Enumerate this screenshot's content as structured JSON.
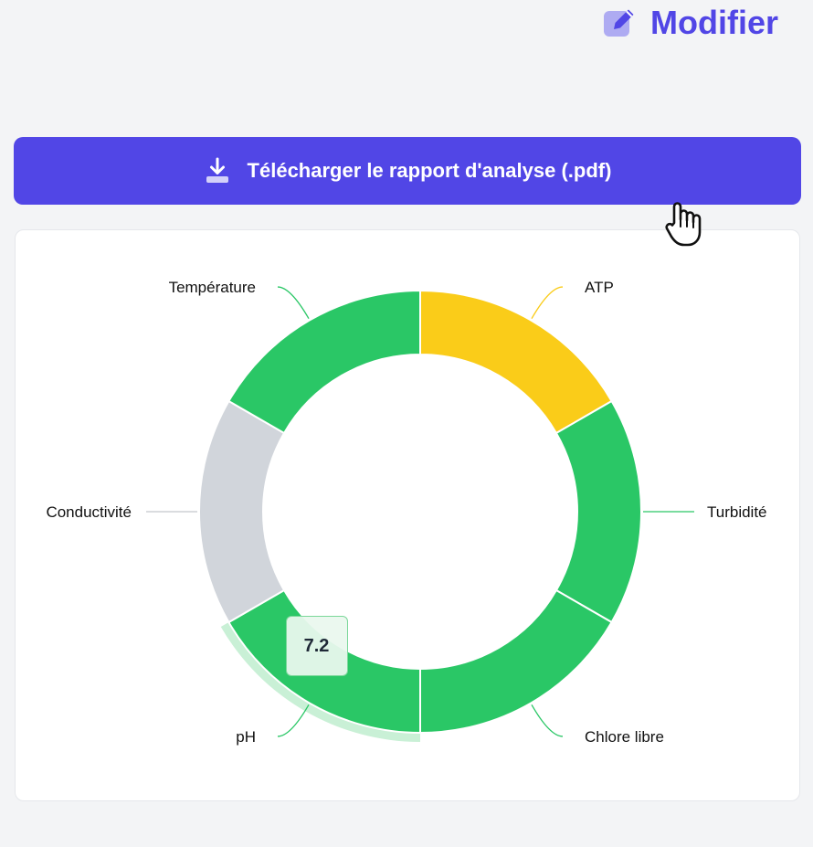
{
  "header": {
    "edit_label": "Modifier",
    "edit_icon": "pencil-square-icon"
  },
  "download": {
    "label": "Télécharger le rapport d'analyse (.pdf)",
    "icon": "download-icon"
  },
  "colors": {
    "accent": "#5146e6",
    "ok": "#2ac766",
    "warning": "#facc19",
    "unknown": "#d1d5db",
    "hover_ring": "#c9f0d6"
  },
  "chart_data": {
    "type": "pie",
    "donut": true,
    "legend": "none",
    "categories": [
      "ATP",
      "Turbidité",
      "Chlore libre",
      "pH",
      "Conductivité",
      "Température"
    ],
    "values": [
      1,
      1,
      1,
      1,
      1,
      1
    ],
    "colors": [
      "#facc19",
      "#2ac766",
      "#2ac766",
      "#2ac766",
      "#d1d5db",
      "#2ac766"
    ],
    "highlighted": {
      "category": "pH",
      "tooltip": "7.2"
    }
  }
}
